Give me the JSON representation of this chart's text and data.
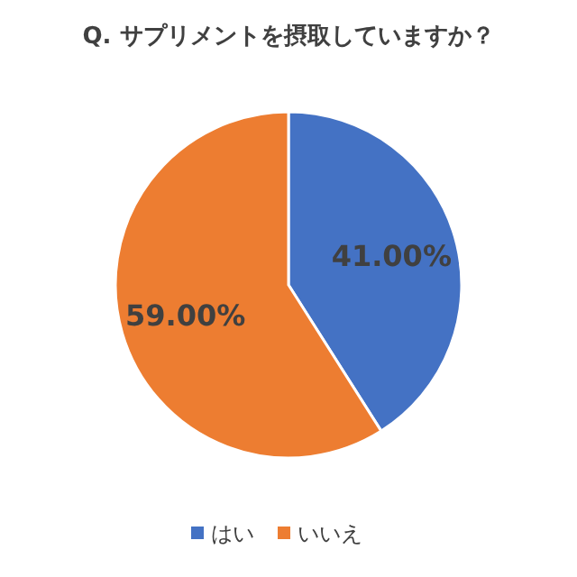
{
  "chart_data": {
    "type": "pie",
    "title": "Q. サプリメントを摂取していますか？",
    "categories": [
      "はい",
      "いいえ"
    ],
    "values": [
      41,
      59
    ],
    "colors": [
      "#4472c4",
      "#ed7d31"
    ],
    "value_labels": [
      "41.00%",
      "59.00%"
    ],
    "legend": "bottom"
  }
}
